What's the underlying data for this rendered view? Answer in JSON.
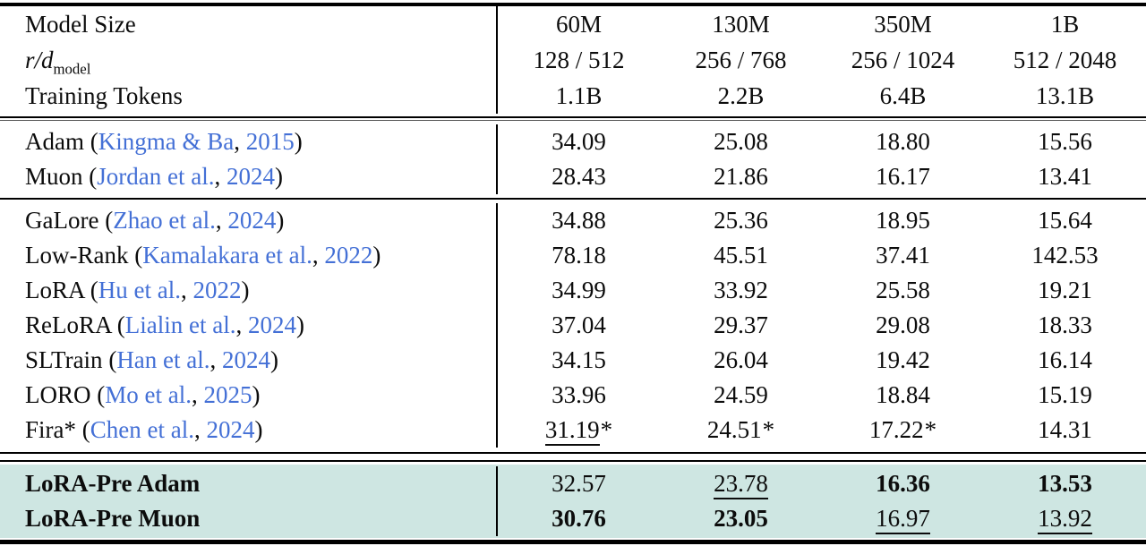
{
  "table": {
    "header": {
      "label_line1": "Model Size",
      "label_rd_main": "r/d",
      "label_rd_sub": "model",
      "label_line3": "Training Tokens",
      "columns": [
        {
          "size": "60M",
          "rd": "128 / 512",
          "tokens": "1.1B"
        },
        {
          "size": "130M",
          "rd": "256 / 768",
          "tokens": "2.2B"
        },
        {
          "size": "350M",
          "rd": "256 / 1024",
          "tokens": "6.4B"
        },
        {
          "size": "1B",
          "rd": "512 / 2048",
          "tokens": "13.1B"
        }
      ]
    },
    "punct": {
      "open": " (",
      "comma": ", ",
      "close": ")"
    },
    "groups": [
      {
        "name": "full-rank-baselines",
        "highlight": false,
        "rows": [
          {
            "label": "Adam",
            "authors": "Kingma & Ba",
            "year": "2015",
            "values": [
              {
                "t": "34.09"
              },
              {
                "t": "25.08"
              },
              {
                "t": "18.80"
              },
              {
                "t": "15.56"
              }
            ]
          },
          {
            "label": "Muon",
            "authors": "Jordan et al.",
            "year": "2024",
            "values": [
              {
                "t": "28.43"
              },
              {
                "t": "21.86"
              },
              {
                "t": "16.17"
              },
              {
                "t": "13.41"
              }
            ]
          }
        ]
      },
      {
        "name": "low-rank-baselines",
        "highlight": false,
        "rows": [
          {
            "label": "GaLore",
            "authors": "Zhao et al.",
            "year": "2024",
            "values": [
              {
                "t": "34.88"
              },
              {
                "t": "25.36"
              },
              {
                "t": "18.95"
              },
              {
                "t": "15.64"
              }
            ]
          },
          {
            "label": "Low-Rank",
            "authors": "Kamalakara et al.",
            "year": "2022",
            "values": [
              {
                "t": "78.18"
              },
              {
                "t": "45.51"
              },
              {
                "t": "37.41"
              },
              {
                "t": "142.53"
              }
            ]
          },
          {
            "label": "LoRA",
            "authors": "Hu et al.",
            "year": "2022",
            "values": [
              {
                "t": "34.99"
              },
              {
                "t": "33.92"
              },
              {
                "t": "25.58"
              },
              {
                "t": "19.21"
              }
            ]
          },
          {
            "label": "ReLoRA",
            "authors": "Lialin et al.",
            "year": "2024",
            "values": [
              {
                "t": "37.04"
              },
              {
                "t": "29.37"
              },
              {
                "t": "29.08"
              },
              {
                "t": "18.33"
              }
            ]
          },
          {
            "label": "SLTrain",
            "authors": "Han et al.",
            "year": "2024",
            "values": [
              {
                "t": "34.15"
              },
              {
                "t": "26.04"
              },
              {
                "t": "19.42"
              },
              {
                "t": "16.14"
              }
            ]
          },
          {
            "label": "LORO",
            "authors": "Mo et al.",
            "year": "2025",
            "values": [
              {
                "t": "33.96"
              },
              {
                "t": "24.59"
              },
              {
                "t": "18.84"
              },
              {
                "t": "15.19"
              }
            ]
          },
          {
            "label": "Fira*",
            "authors": "Chen et al.",
            "year": "2024",
            "values": [
              {
                "t": "31.19",
                "star": true,
                "underline": true
              },
              {
                "t": "24.51",
                "star": true
              },
              {
                "t": "17.22",
                "star": true
              },
              {
                "t": "14.31"
              }
            ]
          }
        ]
      },
      {
        "name": "ours-lora-pre",
        "highlight": true,
        "rows": [
          {
            "label": "LoRA-Pre Adam",
            "bold_label": true,
            "values": [
              {
                "t": "32.57"
              },
              {
                "t": "23.78",
                "underline": true
              },
              {
                "t": "16.36",
                "bold": true
              },
              {
                "t": "13.53",
                "bold": true
              }
            ]
          },
          {
            "label": "LoRA-Pre Muon",
            "bold_label": true,
            "values": [
              {
                "t": "30.76",
                "bold": true
              },
              {
                "t": "23.05",
                "bold": true
              },
              {
                "t": "16.97",
                "underline": true
              },
              {
                "t": "13.92",
                "underline": true
              }
            ]
          }
        ]
      }
    ],
    "colors": {
      "citation_blue": "#4470d6",
      "highlight_teal": "#cee6e2"
    }
  }
}
